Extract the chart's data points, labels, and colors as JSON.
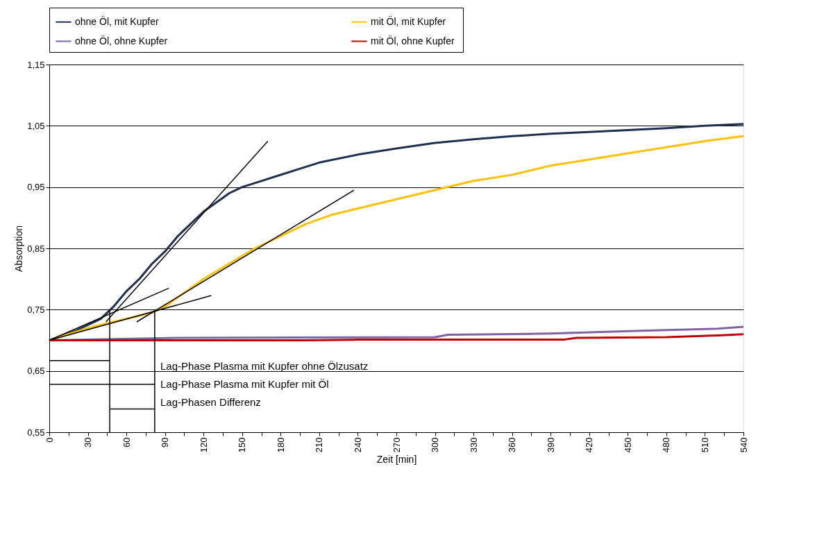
{
  "chart_data": {
    "type": "line",
    "xlabel": "Zeit [min]",
    "ylabel": "Absorption",
    "xlim": [
      0,
      540
    ],
    "ylim": [
      0.55,
      1.15
    ],
    "xticks": [
      0,
      {
        "value": 15,
        "label": null
      },
      30,
      {
        "value": 45,
        "label": null
      },
      60,
      {
        "value": 75,
        "label": null
      },
      90,
      {
        "value": 105,
        "label": null
      },
      120,
      {
        "value": 135,
        "label": null
      },
      150,
      {
        "value": 165,
        "label": null
      },
      180,
      {
        "value": 195,
        "label": null
      },
      210,
      {
        "value": 225,
        "label": null
      },
      240,
      {
        "value": 255,
        "label": null
      },
      270,
      {
        "value": 285,
        "label": null
      },
      300,
      {
        "value": 315,
        "label": null
      },
      330,
      {
        "value": 345,
        "label": null
      },
      360,
      {
        "value": 375,
        "label": null
      },
      390,
      {
        "value": 405,
        "label": null
      },
      420,
      {
        "value": 435,
        "label": null
      },
      450,
      {
        "value": 465,
        "label": null
      },
      480,
      {
        "value": 495,
        "label": null
      },
      510,
      {
        "value": 525,
        "label": null
      },
      540
    ],
    "yticks": [
      {
        "value": 0.55,
        "label": "0,55"
      },
      {
        "value": 0.65,
        "label": "0,65"
      },
      {
        "value": 0.75,
        "label": "0,75"
      },
      {
        "value": 0.85,
        "label": "0,85"
      },
      {
        "value": 0.95,
        "label": "0,95"
      },
      {
        "value": 1.05,
        "label": "1,05"
      },
      {
        "value": 1.15,
        "label": "1,15"
      }
    ],
    "grid": "y",
    "legend": "top",
    "marker": "none",
    "line_style": "solid",
    "series": [
      {
        "name": "ohne Öl, mit Kupfer",
        "color": "#1f2f4f",
        "x": [
          0,
          20,
          40,
          50,
          60,
          70,
          80,
          90,
          100,
          110,
          120,
          130,
          140,
          150,
          165,
          180,
          195,
          210,
          240,
          270,
          300,
          330,
          360,
          390,
          420,
          450,
          480,
          510,
          540
        ],
        "values": [
          0.7,
          0.715,
          0.735,
          0.755,
          0.78,
          0.8,
          0.825,
          0.845,
          0.87,
          0.89,
          0.91,
          0.925,
          0.94,
          0.95,
          0.96,
          0.97,
          0.98,
          0.99,
          1.003,
          1.013,
          1.022,
          1.028,
          1.033,
          1.037,
          1.04,
          1.043,
          1.046,
          1.05,
          1.053
        ]
      },
      {
        "name": "mit Öl,  mit Kupfer",
        "color": "#ffc000",
        "x": [
          0,
          30,
          60,
          80,
          90,
          100,
          120,
          140,
          160,
          180,
          200,
          220,
          240,
          270,
          300,
          330,
          360,
          390,
          420,
          450,
          480,
          510,
          540
        ],
        "values": [
          0.7,
          0.72,
          0.735,
          0.745,
          0.755,
          0.77,
          0.8,
          0.825,
          0.85,
          0.87,
          0.89,
          0.905,
          0.915,
          0.93,
          0.945,
          0.96,
          0.97,
          0.985,
          0.995,
          1.005,
          1.015,
          1.025,
          1.033
        ]
      },
      {
        "name": "ohne Öl, ohne Kupfer",
        "color": "#8064a2",
        "x": [
          0,
          100,
          300,
          310,
          390,
          420,
          470,
          520,
          540
        ],
        "values": [
          0.7,
          0.704,
          0.705,
          0.709,
          0.711,
          0.713,
          0.716,
          0.719,
          0.722
        ]
      },
      {
        "name": "mit Öl,  ohne Kupfer",
        "color": "#c00000",
        "x": [
          0,
          200,
          240,
          400,
          410,
          480,
          520,
          540
        ],
        "values": [
          0.7,
          0.7,
          0.701,
          0.701,
          0.704,
          0.705,
          0.708,
          0.71
        ]
      },
      {
        "color": "#000000",
        "type": "line",
        "x": [
          44,
          170
        ],
        "values": [
          0.73,
          1.025
        ]
      },
      {
        "color": "#000000",
        "type": "line",
        "x": [
          68,
          237
        ],
        "values": [
          0.73,
          0.945
        ]
      },
      {
        "color": "#000000",
        "type": "line",
        "x": [
          0,
          93
        ],
        "values": [
          0.7,
          0.785
        ]
      },
      {
        "color": "#000000",
        "type": "line",
        "x": [
          0,
          126
        ],
        "values": [
          0.7,
          0.773
        ]
      },
      {
        "color": "#000000",
        "type": "line",
        "x": [
          47,
          47
        ],
        "values": [
          0.55,
          0.75
        ]
      },
      {
        "color": "#000000",
        "type": "line",
        "x": [
          82,
          82
        ],
        "values": [
          0.55,
          0.75
        ]
      },
      {
        "color": "#000000",
        "type": "line",
        "x": [
          0,
          47
        ],
        "values": [
          0.667,
          0.667
        ]
      },
      {
        "color": "#000000",
        "type": "line",
        "x": [
          0,
          82
        ],
        "values": [
          0.628,
          0.628
        ]
      },
      {
        "color": "#000000",
        "type": "line",
        "x": [
          47,
          82
        ],
        "values": [
          0.588,
          0.588
        ]
      }
    ],
    "annotations": [
      "Lag-Phase Plasma mit Kupfer ohne Ölzusatz",
      "Lag-Phase Plasma mit Kupfer mit Öl",
      "Lag-Phasen Differenz"
    ]
  }
}
